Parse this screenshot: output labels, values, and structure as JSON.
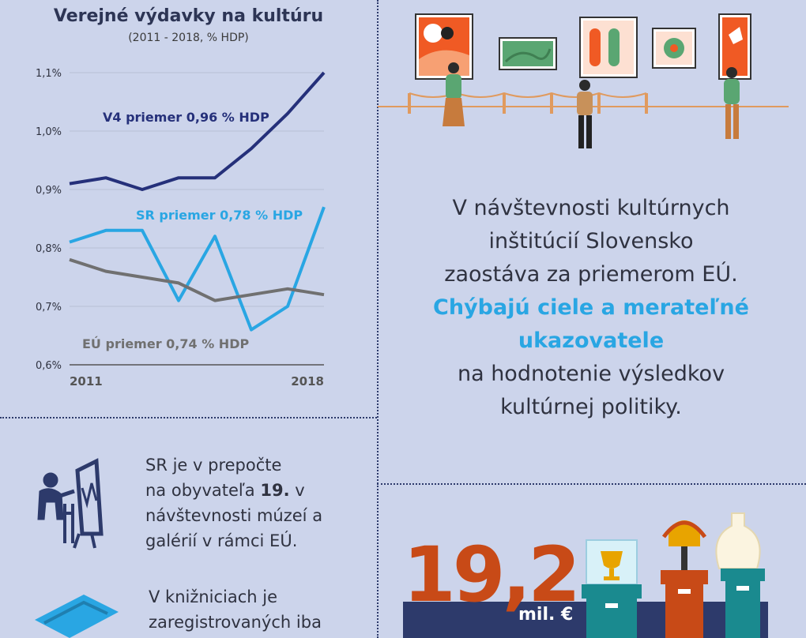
{
  "chart": {
    "title": "Verejné výdavky na kultúru",
    "subtitle": "(2011 - 2018, % HDP)"
  },
  "chart_data": {
    "type": "line",
    "title": "Verejné výdavky na kultúru",
    "subtitle": "(2011 - 2018, % HDP)",
    "x": [
      2011,
      2012,
      2013,
      2014,
      2015,
      2016,
      2017,
      2018
    ],
    "x_tick_labels": [
      "2011",
      "2018"
    ],
    "y_tick_labels": [
      "1,1%",
      "1,0%",
      "0,9%",
      "0,8%",
      "0,7%",
      "0,6%"
    ],
    "ylim": [
      0.6,
      1.1
    ],
    "grid": true,
    "series": [
      {
        "name": "V4 priemer 0,96 % HDP",
        "color": "#25307a",
        "values": [
          0.91,
          0.92,
          0.9,
          0.92,
          0.92,
          0.97,
          1.03,
          1.1
        ]
      },
      {
        "name": "SR priemer 0,78 % HDP",
        "color": "#29a6e3",
        "values": [
          0.81,
          0.83,
          0.83,
          0.71,
          0.82,
          0.66,
          0.7,
          0.87
        ]
      },
      {
        "name": "EÚ priemer 0,74 % HDP",
        "color": "#707070",
        "values": [
          0.78,
          0.76,
          0.75,
          0.74,
          0.71,
          0.72,
          0.73,
          0.72
        ]
      }
    ]
  },
  "right_text": {
    "line1": "V návštevnosti kultúrnych",
    "line2": "inštitúcií Slovensko",
    "line3": "zaostáva za priemerom EÚ.",
    "highlight1": "Chýbajú ciele a merateľné",
    "highlight2": "ukazovatele",
    "line4": "na hodnotenie výsledkov",
    "line5": "kultúrnej politiky."
  },
  "museum": {
    "line1": "SR je v prepočte",
    "line2_pre": "na obyvateľa ",
    "line2_bold": "19.",
    "line2_post": " v",
    "line3": "návštevnosti múzeí a",
    "line4": "galérií v rámci EÚ."
  },
  "library": {
    "line1": "V knižniciach je",
    "line2": "zaregistrovaných iba"
  },
  "budget": {
    "value": "19,2",
    "unit": "mil. €"
  },
  "colors": {
    "background": "#ccd4eb",
    "accent_blue": "#29a6e3",
    "dark_blue": "#25307a",
    "orange": "#c84a17",
    "teal": "#1a8a8f"
  }
}
